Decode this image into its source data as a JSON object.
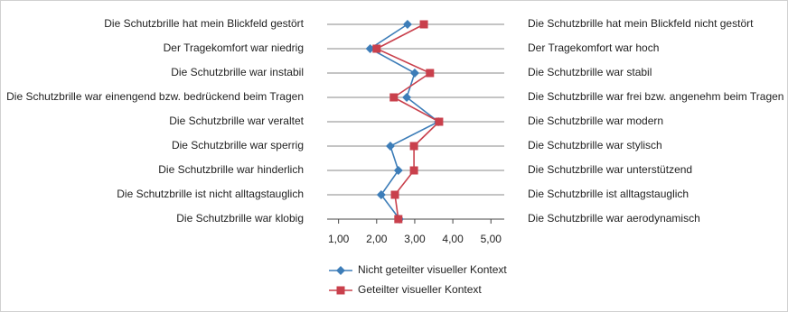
{
  "chart_data": {
    "type": "line",
    "orientation": "horizontal",
    "categories": [
      "Die Schutzbrille hat mein Blickfeld gestört",
      "Der Tragekomfort war niedrig",
      "Die Schutzbrille war instabil",
      "Die Schutzbrille war einengend bzw. bedrückend beim Tragen",
      "Die Schutzbrille war veraltet",
      "Die Schutzbrille war sperrig",
      "Die Schutzbrille war hinderlich",
      "Die Schutzbrille ist nicht alltagstauglich",
      "Die Schutzbrille war klobig"
    ],
    "categories_right": [
      "Die Schutzbrille hat mein Blickfeld nicht gestört",
      "Der Tragekomfort war hoch",
      "Die Schutzbrille war stabil",
      "Die Schutzbrille war frei bzw. angenehm beim Tragen",
      "Die Schutzbrille war modern",
      "Die Schutzbrille war stylisch",
      "Die Schutzbrille war unterstützend",
      "Die Schutzbrille ist alltagstauglich",
      "Die Schutzbrille war aerodynamisch"
    ],
    "series": [
      {
        "name": "Nicht geteilter visueller Kontext",
        "color": "#3d7db8",
        "marker": "diamond",
        "values": [
          2.81,
          1.83,
          3.0,
          2.79,
          3.62,
          2.36,
          2.57,
          2.12,
          2.6
        ]
      },
      {
        "name": "Geteilter visueller Kontext",
        "color": "#c9404c",
        "marker": "square",
        "values": [
          3.24,
          2.0,
          3.4,
          2.45,
          3.64,
          2.98,
          2.98,
          2.48,
          2.57
        ]
      }
    ],
    "xlim": [
      0.7,
      5.35
    ],
    "xticks": [
      {
        "value": 1,
        "label": "1,00"
      },
      {
        "value": 2,
        "label": "2,00"
      },
      {
        "value": 3,
        "label": "3,00"
      },
      {
        "value": 4,
        "label": "4,00"
      },
      {
        "value": 5,
        "label": "5,00"
      }
    ],
    "legend": "bottom"
  }
}
